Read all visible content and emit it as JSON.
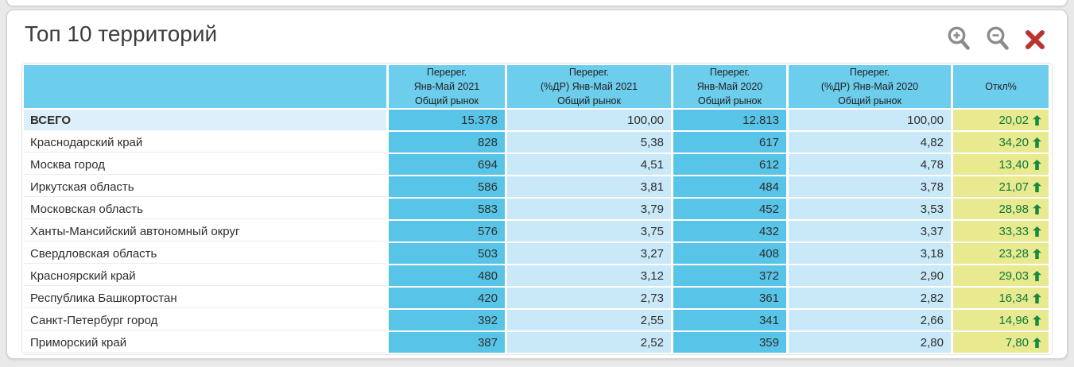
{
  "panel": {
    "title": "Топ 10 территорий"
  },
  "toolbar": {
    "zoom_in_icon": "magnifier-plus",
    "zoom_out_icon": "magnifier-minus",
    "close_icon": "red-cross",
    "icon_color": "#8c8c8c",
    "close_color": "#b93431"
  },
  "colors": {
    "header_cell": "#6dcdec",
    "value_cell": "#58c5e8",
    "percent_cell": "#c9e9f8",
    "deviation_cell": "#e9e98f",
    "deviation_text": "#0b7a3a",
    "total_name_cell": "#ddeffa",
    "trend_arrow": "#178a41"
  },
  "table": {
    "columns": [
      {
        "title": ""
      },
      {
        "title": "Перерег.\nЯнв-Май 2021\nОбщий рынок"
      },
      {
        "title": "Перерег.\n(%ДР) Янв-Май 2021\nОбщий рынок"
      },
      {
        "title": "Перерег.\nЯнв-Май 2020\nОбщий рынок"
      },
      {
        "title": "Перерег.\n(%ДР) Янв-Май 2020\nОбщий рынок"
      },
      {
        "title": "Откл%"
      }
    ],
    "rows": [
      {
        "territory": "ВСЕГО",
        "total": true,
        "v2021": "15.378",
        "p2021": "100,00",
        "v2020": "12.813",
        "p2020": "100,00",
        "deviation": "20,02",
        "trend": "up"
      },
      {
        "territory": "Краснодарский край",
        "v2021": "828",
        "p2021": "5,38",
        "v2020": "617",
        "p2020": "4,82",
        "deviation": "34,20",
        "trend": "up"
      },
      {
        "territory": "Москва город",
        "v2021": "694",
        "p2021": "4,51",
        "v2020": "612",
        "p2020": "4,78",
        "deviation": "13,40",
        "trend": "up"
      },
      {
        "territory": "Иркутская область",
        "v2021": "586",
        "p2021": "3,81",
        "v2020": "484",
        "p2020": "3,78",
        "deviation": "21,07",
        "trend": "up"
      },
      {
        "territory": "Московская область",
        "v2021": "583",
        "p2021": "3,79",
        "v2020": "452",
        "p2020": "3,53",
        "deviation": "28,98",
        "trend": "up"
      },
      {
        "territory": "Ханты-Мансийский автономный округ",
        "v2021": "576",
        "p2021": "3,75",
        "v2020": "432",
        "p2020": "3,37",
        "deviation": "33,33",
        "trend": "up"
      },
      {
        "territory": "Свердловская область",
        "v2021": "503",
        "p2021": "3,27",
        "v2020": "408",
        "p2020": "3,18",
        "deviation": "23,28",
        "trend": "up"
      },
      {
        "territory": "Красноярский край",
        "v2021": "480",
        "p2021": "3,12",
        "v2020": "372",
        "p2020": "2,90",
        "deviation": "29,03",
        "trend": "up"
      },
      {
        "territory": "Республика Башкортостан",
        "v2021": "420",
        "p2021": "2,73",
        "v2020": "361",
        "p2020": "2,82",
        "deviation": "16,34",
        "trend": "up"
      },
      {
        "territory": "Санкт-Петербург город",
        "v2021": "392",
        "p2021": "2,55",
        "v2020": "341",
        "p2020": "2,66",
        "deviation": "14,96",
        "trend": "up"
      },
      {
        "territory": "Приморский край",
        "v2021": "387",
        "p2021": "2,52",
        "v2020": "359",
        "p2020": "2,80",
        "deviation": "7,80",
        "trend": "up"
      }
    ]
  }
}
